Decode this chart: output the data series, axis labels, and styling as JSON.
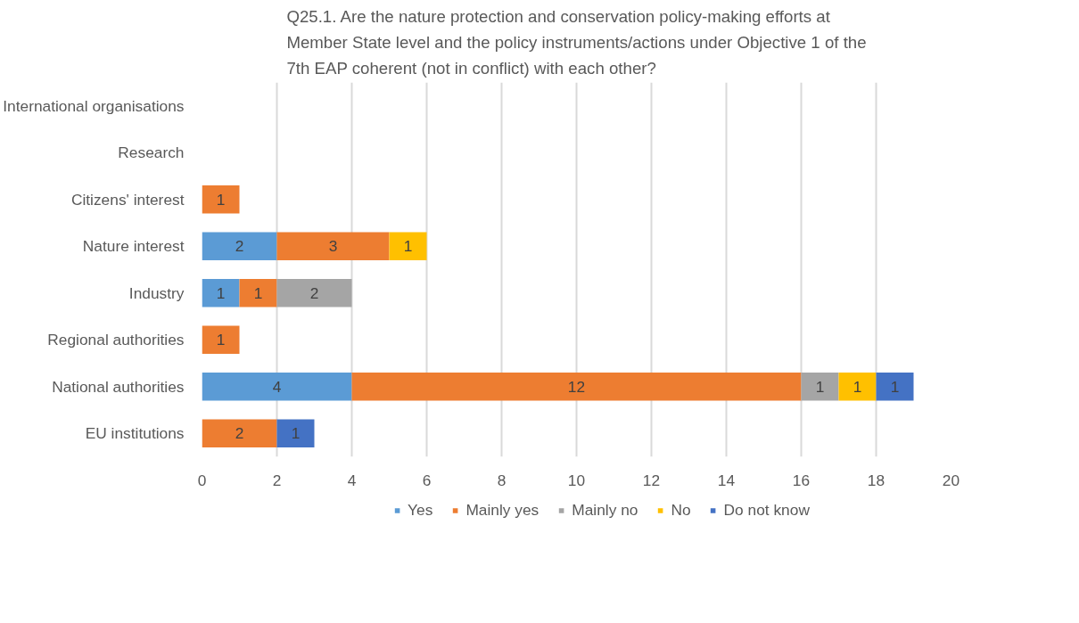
{
  "chart_data": {
    "type": "bar",
    "orientation": "horizontal",
    "stacked": true,
    "title": "Q25.1.  Are the nature protection and conservation policy-making efforts at Member State level and the policy instruments/actions under Objective 1 of the 7th EAP coherent (not in conflict) with each other?",
    "categories": [
      "International organisations",
      "Research",
      "Citizens' interest",
      "Nature interest",
      "Industry",
      "Regional authorities",
      "National authorities",
      "EU institutions"
    ],
    "series": [
      {
        "name": "Yes",
        "color": "#5b9bd5",
        "values": [
          null,
          null,
          null,
          2,
          1,
          null,
          4,
          null
        ]
      },
      {
        "name": "Mainly yes",
        "color": "#ed7d31",
        "values": [
          null,
          null,
          1,
          3,
          1,
          1,
          12,
          2
        ]
      },
      {
        "name": "Mainly no",
        "color": "#a5a5a5",
        "values": [
          null,
          null,
          null,
          null,
          2,
          null,
          1,
          null
        ]
      },
      {
        "name": "No",
        "color": "#ffc000",
        "values": [
          null,
          null,
          null,
          1,
          null,
          null,
          1,
          null
        ]
      },
      {
        "name": "Do not know",
        "color": "#4472c4",
        "values": [
          null,
          null,
          null,
          null,
          null,
          null,
          1,
          1
        ]
      }
    ],
    "xlim": [
      0,
      20
    ],
    "xticks": [
      0,
      2,
      4,
      6,
      8,
      10,
      12,
      14,
      16,
      18,
      20
    ],
    "grid": "x",
    "legend": "bottom",
    "data_labels": true
  }
}
